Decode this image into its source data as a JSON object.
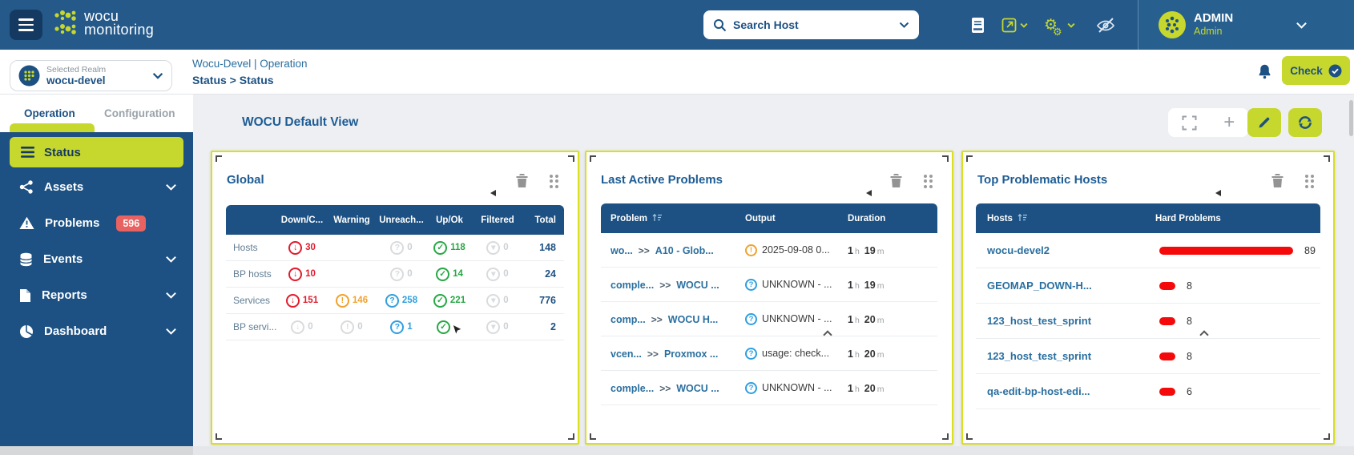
{
  "navbar": {
    "logo_line1": "wocu",
    "logo_line2": "monitoring",
    "search_placeholder": "Search Host",
    "user_name": "ADMIN",
    "user_role": "Admin"
  },
  "header": {
    "breadcrumb_realm": "Wocu-Devel | Operation",
    "breadcrumb_page": "Status > Status",
    "check_label": "Check"
  },
  "sidebar": {
    "realm_label": "Selected Realm",
    "realm_value": "wocu-devel",
    "tabs": {
      "operation": "Operation",
      "configuration": "Configuration"
    },
    "items": [
      {
        "label": "Status"
      },
      {
        "label": "Assets"
      },
      {
        "label": "Problems",
        "badge": "596"
      },
      {
        "label": "Events"
      },
      {
        "label": "Reports"
      },
      {
        "label": "Dashboard"
      }
    ]
  },
  "main": {
    "view_title": "WOCU Default View"
  },
  "global": {
    "title": "Global",
    "columns": {
      "down": "Down/C...",
      "warning": "Warning",
      "unreach": "Unreach...",
      "upok": "Up/Ok",
      "filtered": "Filtered",
      "total": "Total"
    },
    "rows": [
      {
        "label": "Hosts",
        "down": "30",
        "unreach": "0",
        "upok": "118",
        "filtered": "0",
        "total": "148"
      },
      {
        "label": "BP hosts",
        "down": "10",
        "unreach": "0",
        "upok": "14",
        "filtered": "0",
        "total": "24"
      },
      {
        "label": "Services",
        "down": "151",
        "warning": "146",
        "unreach": "258",
        "upok": "221",
        "filtered": "0",
        "total": "776"
      },
      {
        "label": "BP servi...",
        "down": "0",
        "warning": "0",
        "unreach": "1",
        "filtered": "0",
        "total": "2"
      }
    ]
  },
  "problems_panel": {
    "title": "Last Active Problems",
    "columns": {
      "problem": "Problem",
      "output": "Output",
      "duration": "Duration"
    },
    "separator": ">>",
    "unit_h": "h",
    "unit_m": "m",
    "rows": [
      {
        "host": "wo...",
        "service": "A10 - Glob...",
        "severity": "warning",
        "output": "2025-09-08 0...",
        "hours": "1",
        "minutes": "19"
      },
      {
        "host": "comple...",
        "service": "WOCU ...",
        "severity": "unknown",
        "output": "UNKNOWN - ...",
        "hours": "1",
        "minutes": "19"
      },
      {
        "host": "comp...",
        "service": "WOCU H...",
        "severity": "unknown",
        "output": "UNKNOWN - ...",
        "hours": "1",
        "minutes": "20"
      },
      {
        "host": "vcen...",
        "service": "Proxmox ...",
        "severity": "unknown",
        "output": "usage: check...",
        "hours": "1",
        "minutes": "20"
      },
      {
        "host": "comple...",
        "service": "WOCU ...",
        "severity": "unknown",
        "output": "UNKNOWN - ...",
        "hours": "1",
        "minutes": "20"
      }
    ]
  },
  "hosts_panel": {
    "title": "Top Problematic Hosts",
    "columns": {
      "hosts": "Hosts",
      "problems": "Hard Problems"
    },
    "rows": [
      {
        "host": "wocu-devel2",
        "value": 89
      },
      {
        "host": "GEOMAP_DOWN-H...",
        "value": 8
      },
      {
        "host": "123_host_test_sprint",
        "value": 8
      },
      {
        "host": "123_host_test_sprint",
        "value": 8
      },
      {
        "host": "qa-edit-bp-host-edi...",
        "value": 6
      }
    ]
  },
  "colors": {
    "accent": "#c6d72e",
    "navbar_blue": "#24598a",
    "navy": "#1d5183",
    "link_blue": "#2a6f9f",
    "critical_red": "#e11b2c",
    "warning_orange": "#f0a22e",
    "unknown_blue": "#2f9fe0",
    "ok_green": "#27a844",
    "badge_red": "#e96262",
    "bar_red": "#f40a0a",
    "widget_border": "#dadf1e"
  }
}
